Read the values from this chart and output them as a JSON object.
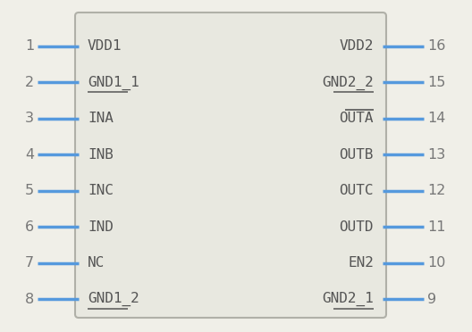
{
  "background_color": "#f0efe8",
  "body_edgecolor": "#b0b0a8",
  "body_facecolor": "#e8e8e0",
  "pin_color": "#5599dd",
  "text_color": "#555555",
  "pin_num_color": "#777777",
  "left_pins": [
    {
      "num": "1",
      "name": "VDD1",
      "has_overbar": false
    },
    {
      "num": "2",
      "name": "GND1_1",
      "has_overbar": false
    },
    {
      "num": "3",
      "name": "INA",
      "has_overbar": false
    },
    {
      "num": "4",
      "name": "INB",
      "has_overbar": false
    },
    {
      "num": "5",
      "name": "INC",
      "has_overbar": false
    },
    {
      "num": "6",
      "name": "IND",
      "has_overbar": false
    },
    {
      "num": "7",
      "name": "NC",
      "has_overbar": false
    },
    {
      "num": "8",
      "name": "GND1_2",
      "has_overbar": false
    }
  ],
  "right_pins": [
    {
      "num": "16",
      "name": "VDD2",
      "has_overbar": false
    },
    {
      "num": "15",
      "name": "GND2_2",
      "has_overbar": false
    },
    {
      "num": "14",
      "name": "OUTA",
      "has_overbar": true
    },
    {
      "num": "13",
      "name": "OUTB",
      "has_overbar": false
    },
    {
      "num": "12",
      "name": "OUTC",
      "has_overbar": false
    },
    {
      "num": "11",
      "name": "OUTD",
      "has_overbar": false
    },
    {
      "num": "10",
      "name": "EN2",
      "has_overbar": false
    },
    {
      "num": "9",
      "name": "GND2_1",
      "has_overbar": false
    }
  ],
  "fig_w": 5.28,
  "fig_h": 3.72,
  "dpi": 100
}
